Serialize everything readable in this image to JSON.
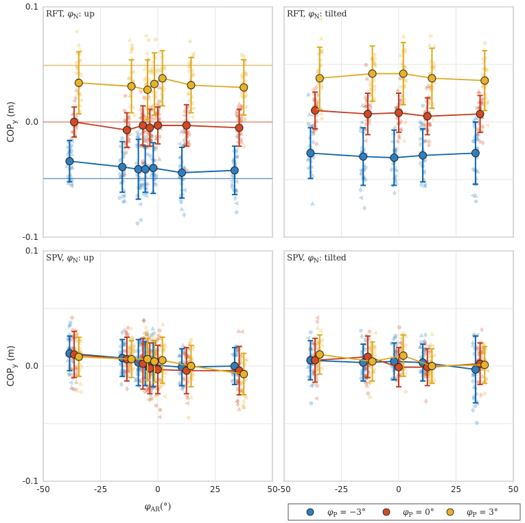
{
  "colors": {
    "neg3": "#0b62a8",
    "zero": "#c0391b",
    "pos3": "#dca91a",
    "neg3_fill": "#2e7fc0",
    "zero_fill": "#d24a26",
    "pos3_fill": "#e8b22a"
  },
  "y_axis_label": "COP",
  "y_axis_label_sub": "y",
  "y_axis_label_unit": " (m)",
  "x_axis_label": "φ",
  "x_axis_label_sub": "AR",
  "x_axis_label_unit": "(°)",
  "legend": {
    "items": [
      {
        "series": "neg3",
        "label": "φ",
        "sub": "P",
        "rest": " = −3°"
      },
      {
        "series": "zero",
        "label": "φ",
        "sub": "P",
        "rest": " = 0°"
      },
      {
        "series": "pos3",
        "label": "φ",
        "sub": "P",
        "rest": " = 3°"
      }
    ]
  },
  "chart_data": [
    {
      "type": "line",
      "id": "rft-up",
      "title": "RFT, ",
      "title_sym": "φ",
      "title_sub": "N",
      "title_rest": ": up",
      "xlim": [
        -50,
        50
      ],
      "ylim": [
        -0.1,
        0.1
      ],
      "xticks": [
        -50,
        -25,
        0,
        25,
        50
      ],
      "xtick_labels": [
        "-50",
        "-25",
        "0",
        "25",
        "50"
      ],
      "yticks": [
        -0.1,
        0.0,
        0.1
      ],
      "ytick_labels": [
        "-0.1",
        "0.0",
        "0.1"
      ],
      "ref_lines": [
        {
          "series": "pos3",
          "y": 0.049
        },
        {
          "series": "zero",
          "y": 0.0
        },
        {
          "series": "neg3",
          "y": -0.049
        }
      ],
      "series": [
        {
          "series": "neg3",
          "name": "φP = −3°",
          "x": [
            -38.5,
            -15.5,
            -8.5,
            -5.5,
            -2,
            10.5,
            33.5
          ],
          "y": [
            -0.034,
            -0.039,
            -0.041,
            -0.041,
            -0.04,
            -0.044,
            -0.042
          ],
          "err": [
            0.018,
            0.022,
            0.026,
            0.02,
            0.022,
            0.022,
            0.021
          ]
        },
        {
          "series": "zero",
          "name": "φP = 0°",
          "x": [
            -36.5,
            -13.5,
            -6.5,
            -3.5,
            0,
            12.5,
            35.5
          ],
          "y": [
            0.0,
            -0.007,
            -0.003,
            -0.005,
            -0.003,
            -0.003,
            -0.005
          ],
          "err": [
            0.013,
            0.015,
            0.017,
            0.016,
            0.016,
            0.018,
            0.016
          ]
        },
        {
          "series": "pos3",
          "name": "φP = 3°",
          "x": [
            -34.5,
            -11.5,
            -4.5,
            -1.5,
            2,
            14.5,
            37.5
          ],
          "y": [
            0.034,
            0.031,
            0.028,
            0.033,
            0.038,
            0.032,
            0.03
          ],
          "err": [
            0.027,
            0.023,
            0.026,
            0.027,
            0.024,
            0.024,
            0.024
          ]
        }
      ]
    },
    {
      "type": "line",
      "id": "rft-tilted",
      "title": "RFT, ",
      "title_sym": "φ",
      "title_sub": "N",
      "title_rest": ": tilted",
      "xlim": [
        -50,
        50
      ],
      "ylim": [
        -0.1,
        0.1
      ],
      "xticks": [
        -50,
        -25,
        0,
        25,
        50
      ],
      "xtick_labels": [
        "-50",
        "-25",
        "0",
        "25",
        "50"
      ],
      "yticks": [
        -0.1,
        0.0,
        0.1
      ],
      "ytick_labels": [
        "",
        "",
        ""
      ],
      "ref_lines": [],
      "series": [
        {
          "series": "neg3",
          "name": "φP = −3°",
          "x": [
            -38.5,
            -15.5,
            -2,
            10.5,
            33.5
          ],
          "y": [
            -0.027,
            -0.03,
            -0.031,
            -0.029,
            -0.027
          ],
          "err": [
            0.022,
            0.025,
            0.024,
            0.023,
            0.027
          ]
        },
        {
          "series": "zero",
          "name": "φP = 0°",
          "x": [
            -36.5,
            -13.5,
            0,
            12.5,
            35.5
          ],
          "y": [
            0.01,
            0.007,
            0.008,
            0.005,
            0.007
          ],
          "err": [
            0.016,
            0.018,
            0.017,
            0.016,
            0.016
          ]
        },
        {
          "series": "pos3",
          "name": "φP = 3°",
          "x": [
            -34.5,
            -11.5,
            2,
            14.5,
            37.5
          ],
          "y": [
            0.038,
            0.042,
            0.042,
            0.038,
            0.036
          ],
          "err": [
            0.027,
            0.024,
            0.027,
            0.026,
            0.026
          ]
        }
      ]
    },
    {
      "type": "line",
      "id": "spv-up",
      "title": "SPV, ",
      "title_sym": "φ",
      "title_sub": "N",
      "title_rest": ": up",
      "xlim": [
        -50,
        50
      ],
      "ylim": [
        -0.1,
        0.1
      ],
      "xticks": [
        -50,
        -25,
        0,
        25,
        50
      ],
      "xtick_labels": [
        "-50",
        "-25",
        "0",
        "25",
        "50"
      ],
      "yticks": [
        -0.1,
        0.0,
        0.1
      ],
      "ytick_labels": [
        "-0.1",
        "0.0",
        "0.1"
      ],
      "ref_lines": [],
      "series": [
        {
          "series": "neg3",
          "name": "φP = −3°",
          "x": [
            -38.5,
            -15.5,
            -8.5,
            -5.5,
            -2,
            10.5,
            33.5
          ],
          "y": [
            0.011,
            0.007,
            0.003,
            0.002,
            0.001,
            -0.001,
            0.0
          ],
          "err": [
            0.015,
            0.016,
            0.02,
            0.019,
            0.019,
            0.016,
            0.016
          ]
        },
        {
          "series": "zero",
          "name": "φP = 0°",
          "x": [
            -36.5,
            -13.5,
            -6.5,
            -3.5,
            0,
            12.5,
            35.5
          ],
          "y": [
            0.01,
            0.006,
            0.002,
            -0.002,
            -0.003,
            -0.004,
            -0.004
          ],
          "err": [
            0.02,
            0.019,
            0.022,
            0.022,
            0.021,
            0.02,
            0.021
          ]
        },
        {
          "series": "pos3",
          "name": "φP = 3°",
          "x": [
            -34.5,
            -11.5,
            -4.5,
            -1.5,
            2,
            14.5,
            37.5
          ],
          "y": [
            0.008,
            0.006,
            0.006,
            0.004,
            0.005,
            0.0,
            -0.007
          ],
          "err": [
            0.017,
            0.016,
            0.018,
            0.018,
            0.02,
            0.018,
            0.018
          ]
        }
      ]
    },
    {
      "type": "line",
      "id": "spv-tilted",
      "title": "SPV, ",
      "title_sym": "φ",
      "title_sub": "N",
      "title_rest": ": tilted",
      "xlim": [
        -50,
        50
      ],
      "ylim": [
        -0.1,
        0.1
      ],
      "xticks": [
        -50,
        -25,
        0,
        25,
        50
      ],
      "xtick_labels": [
        "-50",
        "-25",
        "0",
        "25",
        "50"
      ],
      "yticks": [
        -0.1,
        0.0,
        0.1
      ],
      "ytick_labels": [
        "",
        "",
        ""
      ],
      "ref_lines": [],
      "series": [
        {
          "series": "neg3",
          "name": "φP = −3°",
          "x": [
            -38.5,
            -15.5,
            -2,
            10.5,
            33.5
          ],
          "y": [
            0.005,
            0.003,
            0.004,
            0.003,
            -0.003
          ],
          "err": [
            0.017,
            0.016,
            0.016,
            0.016,
            0.029
          ]
        },
        {
          "series": "zero",
          "name": "φP = 0°",
          "x": [
            -36.5,
            -13.5,
            0,
            12.5,
            35.5
          ],
          "y": [
            0.005,
            0.008,
            -0.001,
            -0.001,
            0.002
          ],
          "err": [
            0.019,
            0.018,
            0.017,
            0.016,
            0.018
          ]
        },
        {
          "series": "pos3",
          "name": "φP = 3°",
          "x": [
            -34.5,
            -11.5,
            2,
            14.5,
            37.5
          ],
          "y": [
            0.01,
            0.004,
            0.009,
            0.0,
            0.001
          ],
          "err": [
            0.017,
            0.017,
            0.018,
            0.015,
            0.016
          ]
        }
      ]
    }
  ]
}
